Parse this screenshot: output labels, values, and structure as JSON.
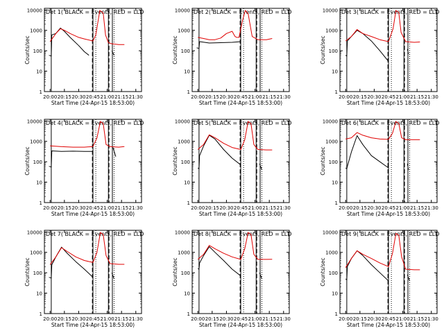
{
  "figure": {
    "xlabel": "Start Time (24-Apr-15 18:53:00)",
    "ylabel": "Counts/sec"
  },
  "colors": {
    "events": "#000000",
    "lld": "#e00000",
    "axes": "#000000"
  },
  "chart_data": [
    {
      "type": "line",
      "title": "Det 1( BLACK = Events, RED = LLD",
      "x_ticks": [
        "20:00",
        "20:15",
        "20:30",
        "20:45",
        "21:00",
        "21:15",
        "21:30"
      ],
      "y_ticks": [
        "1",
        "10",
        "100",
        "1000",
        "10000"
      ],
      "ylog": true,
      "ylim": [
        1,
        12000
      ],
      "series": [
        {
          "color": "black",
          "x": [
            19.98,
            20.02,
            20.03,
            20.1,
            20.18,
            20.25,
            20.35,
            20.5,
            20.6,
            20.68,
            20.75,
            20.82,
            20.9,
            21.05,
            21.08,
            21.12
          ],
          "y": [
            60,
            55,
            600,
            700,
            1300,
            900,
            450,
            180,
            90,
            60,
            null,
            null,
            null,
            null,
            100,
            60
          ]
        },
        {
          "color": "red",
          "x": [
            20.0,
            20.1,
            20.18,
            20.25,
            20.35,
            20.5,
            20.6,
            20.75,
            20.8,
            20.87,
            20.93,
            20.97,
            21.02,
            21.08,
            21.2,
            21.3
          ],
          "y": [
            280,
            700,
            1200,
            1000,
            700,
            450,
            380,
            300,
            600,
            9500,
            7000,
            600,
            250,
            220,
            200,
            200
          ]
        }
      ],
      "dashed_x": [
        20.74,
        21.03
      ],
      "solid_x": [
        20.02,
        20.75,
        21.02,
        21.09
      ],
      "dotted_x": [
        20.8,
        21.12
      ]
    },
    {
      "type": "line",
      "title": "Det 2( BLACK = Events, RED = LLD",
      "x_ticks": [
        "20:00",
        "20:15",
        "20:30",
        "20:45",
        "21:00",
        "21:15",
        "21:30"
      ],
      "y_ticks": [
        "1",
        "10",
        "100",
        "1000",
        "10000"
      ],
      "ylog": true,
      "ylim": [
        1,
        12000
      ],
      "series": [
        {
          "color": "black",
          "x": [
            19.98,
            20.02,
            20.03,
            20.2,
            20.4,
            20.6,
            20.68,
            20.75
          ],
          "y": [
            140,
            130,
            280,
            240,
            250,
            260,
            270,
            280
          ]
        },
        {
          "color": "red",
          "x": [
            20.0,
            20.1,
            20.2,
            20.3,
            20.4,
            20.5,
            20.6,
            20.65,
            20.68,
            20.72,
            20.78,
            20.83,
            20.88,
            20.95,
            21.05,
            21.2,
            21.3
          ],
          "y": [
            450,
            400,
            350,
            350,
            420,
            700,
            900,
            500,
            450,
            450,
            3000,
            9500,
            6500,
            500,
            350,
            350,
            400
          ]
        }
      ],
      "dashed_x": [
        20.74,
        21.03
      ],
      "solid_x": [
        20.02,
        20.75,
        21.02,
        21.09
      ],
      "dotted_x": [
        20.8,
        21.12
      ]
    },
    {
      "type": "line",
      "title": "Det 3( BLACK = Events, RED = LLD",
      "x_ticks": [
        "20:00",
        "20:15",
        "20:30",
        "20:45",
        "21:00",
        "21:15",
        "21:30"
      ],
      "y_ticks": [
        "1",
        "10",
        "100",
        "1000",
        "10000"
      ],
      "ylog": true,
      "ylim": [
        1,
        12000
      ],
      "series": [
        {
          "color": "black",
          "x": [
            20.0,
            20.02,
            20.03,
            20.1,
            20.2,
            20.3,
            20.45,
            20.6,
            20.75,
            21.05,
            21.08,
            21.1
          ],
          "y": [
            60,
            55,
            300,
            500,
            1000,
            700,
            300,
            100,
            30,
            null,
            120,
            70
          ]
        },
        {
          "color": "red",
          "x": [
            20.0,
            20.1,
            20.2,
            20.3,
            20.45,
            20.6,
            20.75,
            20.83,
            20.88,
            20.93,
            20.97,
            21.05,
            21.2,
            21.3
          ],
          "y": [
            300,
            500,
            1100,
            700,
            500,
            350,
            280,
            1200,
            9500,
            7500,
            800,
            280,
            260,
            270
          ]
        }
      ],
      "dashed_x": [
        20.74,
        21.03
      ],
      "solid_x": [
        20.02,
        20.75,
        21.02,
        21.09
      ],
      "dotted_x": [
        20.8,
        21.12
      ]
    },
    {
      "type": "line",
      "title": "Det 4( BLACK = Events, RED = LLD",
      "x_ticks": [
        "20:00",
        "20:15",
        "20:30",
        "20:45",
        "21:00",
        "21:15",
        "21:30"
      ],
      "y_ticks": [
        "1",
        "10",
        "100",
        "1000",
        "10000"
      ],
      "ylog": true,
      "ylim": [
        1,
        12000
      ],
      "series": [
        {
          "color": "black",
          "x": [
            19.98,
            20.02,
            20.03,
            20.2,
            20.4,
            20.6,
            20.75,
            21.05,
            21.1,
            21.15
          ],
          "y": [
            60,
            55,
            340,
            320,
            330,
            320,
            320,
            null,
            500,
            180
          ]
        },
        {
          "color": "red",
          "x": [
            20.0,
            20.2,
            20.4,
            20.6,
            20.75,
            20.82,
            20.88,
            20.93,
            20.98,
            21.05,
            21.2,
            21.3
          ],
          "y": [
            600,
            550,
            520,
            520,
            560,
            1500,
            9500,
            7500,
            700,
            550,
            520,
            560
          ]
        }
      ],
      "dashed_x": [
        20.74,
        21.03
      ],
      "solid_x": [
        20.02,
        20.75,
        21.02,
        21.09
      ],
      "dotted_x": [
        20.8,
        21.12
      ]
    },
    {
      "type": "line",
      "title": "Det 5( BLACK = Events, RED = LLD",
      "x_ticks": [
        "20:00",
        "20:15",
        "20:30",
        "20:45",
        "21:00",
        "21:15",
        "21:30"
      ],
      "y_ticks": [
        "1",
        "10",
        "100",
        "1000",
        "10000"
      ],
      "ylog": true,
      "ylim": [
        1,
        12000
      ],
      "series": [
        {
          "color": "black",
          "x": [
            20.0,
            20.02,
            20.03,
            20.1,
            20.2,
            20.3,
            20.45,
            20.6,
            20.75,
            21.05,
            21.08,
            21.12
          ],
          "y": [
            50,
            45,
            200,
            600,
            2000,
            1300,
            400,
            150,
            70,
            null,
            80,
            40
          ]
        },
        {
          "color": "red",
          "x": [
            20.0,
            20.1,
            20.2,
            20.3,
            20.45,
            20.6,
            20.75,
            20.82,
            20.88,
            20.93,
            20.98,
            21.05,
            21.2,
            21.3
          ],
          "y": [
            400,
            700,
            2100,
            1500,
            800,
            500,
            400,
            1200,
            9500,
            7500,
            700,
            400,
            380,
            380
          ]
        }
      ],
      "dashed_x": [
        20.74,
        21.03
      ],
      "solid_x": [
        20.02,
        20.75,
        21.02,
        21.09
      ],
      "dotted_x": [
        20.8,
        21.12
      ]
    },
    {
      "type": "line",
      "title": "Det 6( BLACK = Events, RED = LLD",
      "x_ticks": [
        "20:00",
        "20:15",
        "20:30",
        "20:45",
        "21:00",
        "21:15",
        "21:30"
      ],
      "y_ticks": [
        "1",
        "10",
        "100",
        "1000",
        "10000"
      ],
      "ylog": true,
      "ylim": [
        1,
        12000
      ],
      "series": [
        {
          "color": "black",
          "x": [
            20.0,
            20.02,
            20.03,
            20.1,
            20.2,
            20.3,
            20.45,
            20.6,
            20.75,
            21.05,
            21.08,
            21.1
          ],
          "y": [
            50,
            45,
            60,
            300,
            1900,
            700,
            200,
            100,
            50,
            null,
            80,
            40
          ]
        },
        {
          "color": "red",
          "x": [
            20.0,
            20.1,
            20.2,
            20.3,
            20.45,
            20.6,
            20.75,
            20.82,
            20.88,
            20.93,
            20.98,
            21.05,
            21.2,
            21.3
          ],
          "y": [
            1300,
            1500,
            2700,
            2000,
            1500,
            1300,
            1250,
            2500,
            9500,
            7500,
            1500,
            1200,
            1200,
            1200
          ]
        }
      ],
      "dashed_x": [
        20.74,
        21.03
      ],
      "solid_x": [
        20.02,
        20.75,
        21.02,
        21.09
      ],
      "dotted_x": [
        20.8,
        21.12
      ]
    },
    {
      "type": "line",
      "title": "Det 7( BLACK = Events, RED = LLD",
      "x_ticks": [
        "20:00",
        "20:15",
        "20:30",
        "20:45",
        "21:00",
        "21:15",
        "21:30"
      ],
      "y_ticks": [
        "1",
        "10",
        "100",
        "1000",
        "10000"
      ],
      "ylog": true,
      "ylim": [
        1,
        12000
      ],
      "series": [
        {
          "color": "black",
          "x": [
            19.98,
            20.02,
            20.03,
            20.1,
            20.2,
            20.3,
            20.45,
            20.6,
            20.75,
            21.05,
            21.08,
            21.12
          ],
          "y": [
            60,
            55,
            250,
            600,
            1800,
            900,
            350,
            150,
            60,
            null,
            100,
            50
          ]
        },
        {
          "color": "red",
          "x": [
            20.0,
            20.1,
            20.2,
            20.3,
            20.45,
            20.6,
            20.75,
            20.82,
            20.88,
            20.93,
            20.98,
            21.05,
            21.2,
            21.3
          ],
          "y": [
            250,
            600,
            1700,
            1100,
            600,
            400,
            320,
            1000,
            9500,
            7500,
            700,
            280,
            260,
            260
          ]
        }
      ],
      "dashed_x": [
        20.74,
        21.03
      ],
      "solid_x": [
        20.02,
        20.75,
        21.02,
        21.09
      ],
      "dotted_x": [
        20.8,
        21.12
      ]
    },
    {
      "type": "line",
      "title": "Det 8( BLACK = Events, RED = LLD",
      "x_ticks": [
        "20:00",
        "20:15",
        "20:30",
        "20:45",
        "21:00",
        "21:15",
        "21:30"
      ],
      "y_ticks": [
        "1",
        "10",
        "100",
        "1000",
        "10000"
      ],
      "ylog": true,
      "ylim": [
        1,
        12000
      ],
      "series": [
        {
          "color": "black",
          "x": [
            20.0,
            20.02,
            20.03,
            20.1,
            20.2,
            20.3,
            20.45,
            20.6,
            20.75,
            21.05,
            21.08,
            21.12
          ],
          "y": [
            160,
            150,
            300,
            700,
            1900,
            1000,
            400,
            150,
            70,
            null,
            100,
            50
          ]
        },
        {
          "color": "red",
          "x": [
            20.0,
            20.1,
            20.2,
            20.3,
            20.45,
            20.6,
            20.75,
            20.82,
            20.88,
            20.93,
            20.98,
            21.05,
            21.2,
            21.3
          ],
          "y": [
            450,
            800,
            2200,
            1500,
            900,
            600,
            450,
            1500,
            9500,
            7500,
            800,
            450,
            450,
            460
          ]
        }
      ],
      "dashed_x": [
        20.74,
        21.03
      ],
      "solid_x": [
        20.02,
        20.75,
        21.02,
        21.09
      ],
      "dotted_x": [
        20.8,
        21.12
      ]
    },
    {
      "type": "line",
      "title": "Det 9( BLACK = Events, RED = LLD",
      "x_ticks": [
        "20:00",
        "20:15",
        "20:30",
        "20:45",
        "21:00",
        "21:15",
        "21:30"
      ],
      "y_ticks": [
        "1",
        "10",
        "100",
        "1000",
        "10000"
      ],
      "ylog": true,
      "ylim": [
        1,
        12000
      ],
      "series": [
        {
          "color": "black",
          "x": [
            20.0,
            20.02,
            20.03,
            20.1,
            20.2,
            20.3,
            20.45,
            20.6,
            20.75,
            21.05,
            21.08,
            21.12
          ],
          "y": [
            50,
            45,
            200,
            500,
            1200,
            700,
            250,
            100,
            40,
            null,
            80,
            40
          ]
        },
        {
          "color": "red",
          "x": [
            20.0,
            20.1,
            20.2,
            20.3,
            20.45,
            20.6,
            20.75,
            20.82,
            20.88,
            20.93,
            20.98,
            21.05,
            21.2,
            21.3
          ],
          "y": [
            180,
            500,
            1200,
            800,
            500,
            300,
            200,
            900,
            8500,
            7000,
            600,
            150,
            140,
            140
          ]
        }
      ],
      "dashed_x": [
        20.74,
        21.03
      ],
      "solid_x": [
        20.02,
        20.75,
        21.02,
        21.09
      ],
      "dotted_x": [
        20.8,
        21.12
      ]
    }
  ]
}
